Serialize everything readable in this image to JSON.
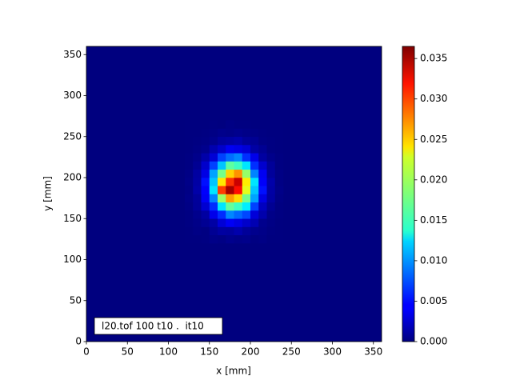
{
  "chart_data": {
    "type": "heatmap",
    "colormap": "jet",
    "xlabel": "x [mm]",
    "ylabel": "y [mm]",
    "annotation": "l20.tof 100 t10 .  it10",
    "xlim": [
      0,
      360
    ],
    "ylim": [
      0,
      360
    ],
    "xticks": [
      0,
      50,
      100,
      150,
      200,
      250,
      300,
      350
    ],
    "yticks": [
      0,
      50,
      100,
      150,
      200,
      250,
      300,
      350
    ],
    "x_bins": [
      120,
      130,
      140,
      150,
      160,
      170,
      180,
      190,
      200,
      210,
      220,
      230,
      240
    ],
    "y_bins": [
      120,
      130,
      140,
      150,
      160,
      170,
      180,
      190,
      200,
      210,
      220,
      230,
      240,
      250,
      260,
      270
    ],
    "values": [
      [
        0,
        0,
        0.0001,
        0.0003,
        0.0002,
        0.0005,
        0.0003,
        0.0004,
        0.0001,
        0.0002,
        0,
        0
      ],
      [
        0,
        0.0002,
        0.0001,
        0.0007,
        0.0012,
        0.0011,
        0.0016,
        0.0009,
        0.0005,
        0.0003,
        0.0001,
        0
      ],
      [
        0.0001,
        0.0003,
        0.0007,
        0.0013,
        0.0031,
        0.0042,
        0.0036,
        0.0027,
        0.0018,
        0.0005,
        0.0002,
        0
      ],
      [
        0.0001,
        0.0005,
        0.0012,
        0.0038,
        0.0061,
        0.0094,
        0.0083,
        0.0071,
        0.0032,
        0.0016,
        0.0003,
        0.0001
      ],
      [
        0.0002,
        0.0009,
        0.0029,
        0.0061,
        0.0128,
        0.0172,
        0.0158,
        0.0131,
        0.0069,
        0.0023,
        0.0007,
        0.0001
      ],
      [
        0.0003,
        0.001,
        0.0042,
        0.0093,
        0.0192,
        0.0263,
        0.0241,
        0.0178,
        0.0104,
        0.0036,
        0.0012,
        0.0002
      ],
      [
        0.0002,
        0.0015,
        0.0045,
        0.0128,
        0.0298,
        0.0352,
        0.0315,
        0.0219,
        0.0117,
        0.0051,
        0.0013,
        0.0003
      ],
      [
        0.0003,
        0.0013,
        0.0051,
        0.0116,
        0.0236,
        0.0301,
        0.0338,
        0.0234,
        0.0128,
        0.0044,
        0.0015,
        0.0002
      ],
      [
        0.0002,
        0.0012,
        0.0036,
        0.0104,
        0.0179,
        0.0244,
        0.0267,
        0.0191,
        0.0093,
        0.0041,
        0.001,
        0.0002
      ],
      [
        0.0001,
        0.0007,
        0.0027,
        0.0069,
        0.0116,
        0.0171,
        0.0159,
        0.0128,
        0.0062,
        0.0028,
        0.0009,
        0.0001
      ],
      [
        0.0001,
        0.0004,
        0.0015,
        0.0031,
        0.0069,
        0.0085,
        0.0094,
        0.0062,
        0.0038,
        0.0012,
        0.0004,
        0.0001
      ],
      [
        0,
        0.0002,
        0.0005,
        0.0017,
        0.0027,
        0.0041,
        0.0037,
        0.0031,
        0.0013,
        0.0007,
        0.0001,
        0
      ],
      [
        0,
        0.0001,
        0.0002,
        0.0005,
        0.0011,
        0.0013,
        0.0016,
        0.0009,
        0.0007,
        0.0002,
        0.0001,
        0
      ],
      [
        0,
        0,
        0.0001,
        0.0002,
        0.0004,
        0.0003,
        0.0005,
        0.0003,
        0.0002,
        0.0001,
        0,
        0
      ],
      [
        0,
        0,
        0,
        0.0001,
        0,
        0.0002,
        0.0001,
        0.0001,
        0,
        0,
        0,
        0
      ]
    ],
    "colorbar": {
      "lim": [
        0,
        0.0365
      ],
      "ticks": [
        {
          "value": 0,
          "label": "0.000"
        },
        {
          "value": 0.005,
          "label": "0.005"
        },
        {
          "value": 0.01,
          "label": "0.010"
        },
        {
          "value": 0.015,
          "label": "0.015"
        },
        {
          "value": 0.02,
          "label": "0.020"
        },
        {
          "value": 0.025,
          "label": "0.025"
        },
        {
          "value": 0.03,
          "label": "0.030"
        },
        {
          "value": 0.035,
          "label": "0.035"
        }
      ]
    }
  }
}
